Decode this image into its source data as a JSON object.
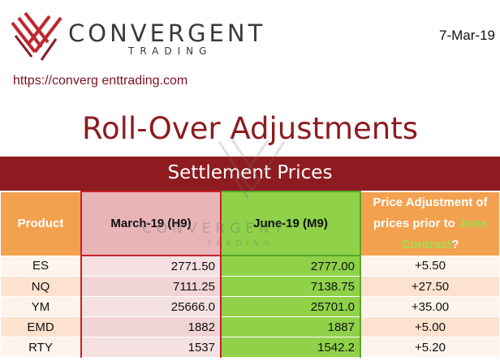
{
  "brand": {
    "name": "CONVERGENT",
    "tagline": "TRADING",
    "url": "https://converg enttrading.com"
  },
  "date": "7-Mar-19",
  "title": "Roll-Over Adjustments",
  "section_title": "Settlement Prices",
  "colors": {
    "brand_red": "#8e1b1f",
    "header_orange": "#f3a14f",
    "march_pink": "#e8b4b8",
    "june_green": "#8fd148"
  },
  "table": {
    "headers": {
      "product": "Product",
      "march": "March-19 (H9)",
      "june": "June-19 (M9)",
      "adjust_pre": "Price Adjustment of prices prior to",
      "adjust_highlight": "June Contract",
      "adjust_post": "?"
    },
    "rows": [
      {
        "product": "ES",
        "march": "2771.50",
        "june": "2777.00",
        "adjust": "+5.50"
      },
      {
        "product": "NQ",
        "march": "7111.25",
        "june": "7138.75",
        "adjust": "+27.50"
      },
      {
        "product": "YM",
        "march": "25666.0",
        "june": "25701.0",
        "adjust": "+35.00"
      },
      {
        "product": "EMD",
        "march": "1882",
        "june": "1887",
        "adjust": "+5.00"
      },
      {
        "product": "RTY",
        "march": "1537",
        "june": "1542.2",
        "adjust": "+5.20"
      }
    ]
  }
}
